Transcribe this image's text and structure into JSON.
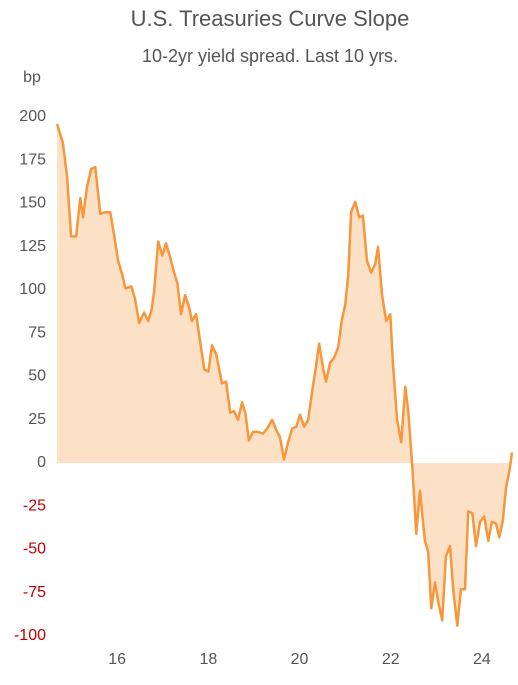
{
  "chart_data": {
    "type": "area",
    "title": "U.S. Treasuries Curve Slope",
    "subtitle": "10-2yr yield spread. Last 10 yrs.",
    "y_label": "bp",
    "x": [
      14.68,
      14.81,
      14.9,
      14.99,
      15.1,
      15.19,
      15.25,
      15.34,
      15.43,
      15.52,
      15.63,
      15.74,
      15.85,
      15.93,
      16.02,
      16.11,
      16.18,
      16.31,
      16.39,
      16.48,
      16.59,
      16.68,
      16.75,
      16.81,
      16.9,
      16.99,
      17.07,
      17.16,
      17.25,
      17.32,
      17.4,
      17.49,
      17.58,
      17.64,
      17.73,
      17.82,
      17.91,
      18.0,
      18.08,
      18.17,
      18.24,
      18.3,
      18.39,
      18.48,
      18.56,
      18.65,
      18.74,
      18.81,
      18.89,
      18.98,
      19.09,
      19.2,
      19.29,
      19.4,
      19.49,
      19.57,
      19.66,
      19.75,
      19.84,
      19.93,
      20.01,
      20.1,
      20.19,
      20.28,
      20.36,
      20.43,
      20.52,
      20.58,
      20.67,
      20.76,
      20.85,
      20.93,
      21.0,
      21.07,
      21.13,
      21.22,
      21.31,
      21.39,
      21.48,
      21.57,
      21.66,
      21.72,
      21.81,
      21.9,
      21.99,
      22.05,
      22.14,
      22.23,
      22.32,
      22.38,
      22.47,
      22.56,
      22.64,
      22.75,
      22.82,
      22.89,
      22.97,
      23.04,
      23.13,
      23.21,
      23.3,
      23.37,
      23.46,
      23.54,
      23.63,
      23.7,
      23.79,
      23.87,
      23.96,
      24.05,
      24.14,
      24.22,
      24.31,
      24.38,
      24.46,
      24.53,
      24.6,
      24.66
    ],
    "series": [
      {
        "name": "10-2yr spread",
        "color": "#f7963a",
        "fill": "#fde1c7",
        "values": [
          196,
          185,
          166,
          131,
          131,
          153,
          142,
          160,
          170,
          171,
          144,
          145,
          145,
          132,
          117,
          109,
          101,
          102,
          95,
          81,
          87,
          82,
          88,
          99,
          128,
          120,
          127,
          119,
          110,
          104,
          86,
          97,
          90,
          82,
          86,
          70,
          54,
          53,
          68,
          63,
          54,
          46,
          47,
          29,
          30,
          25,
          35,
          29,
          13,
          18,
          18,
          17,
          20,
          25,
          19,
          15,
          2,
          12,
          20,
          21,
          28,
          21,
          25,
          42,
          56,
          69,
          54,
          47,
          58,
          61,
          67,
          83,
          91,
          109,
          145,
          151,
          142,
          143,
          117,
          110,
          115,
          125,
          97,
          82,
          86,
          57,
          25,
          12,
          44,
          31,
          -1,
          -41,
          -16,
          -45,
          -51,
          -84,
          -69,
          -80,
          -91,
          -54,
          -48,
          -73,
          -94,
          -73,
          -73,
          -28,
          -29,
          -48,
          -34,
          -31,
          -45,
          -34,
          -35,
          -43,
          -33,
          -14,
          -5,
          6
        ]
      }
    ],
    "xlim": [
      14.68,
      24.66
    ],
    "ylim": [
      -100,
      200
    ],
    "xticks": [
      16,
      18,
      20,
      22,
      24
    ],
    "yticks": [
      -100,
      -75,
      -50,
      -25,
      0,
      25,
      50,
      75,
      100,
      125,
      150,
      175,
      200
    ],
    "negative_tick_color": "#c00000"
  }
}
